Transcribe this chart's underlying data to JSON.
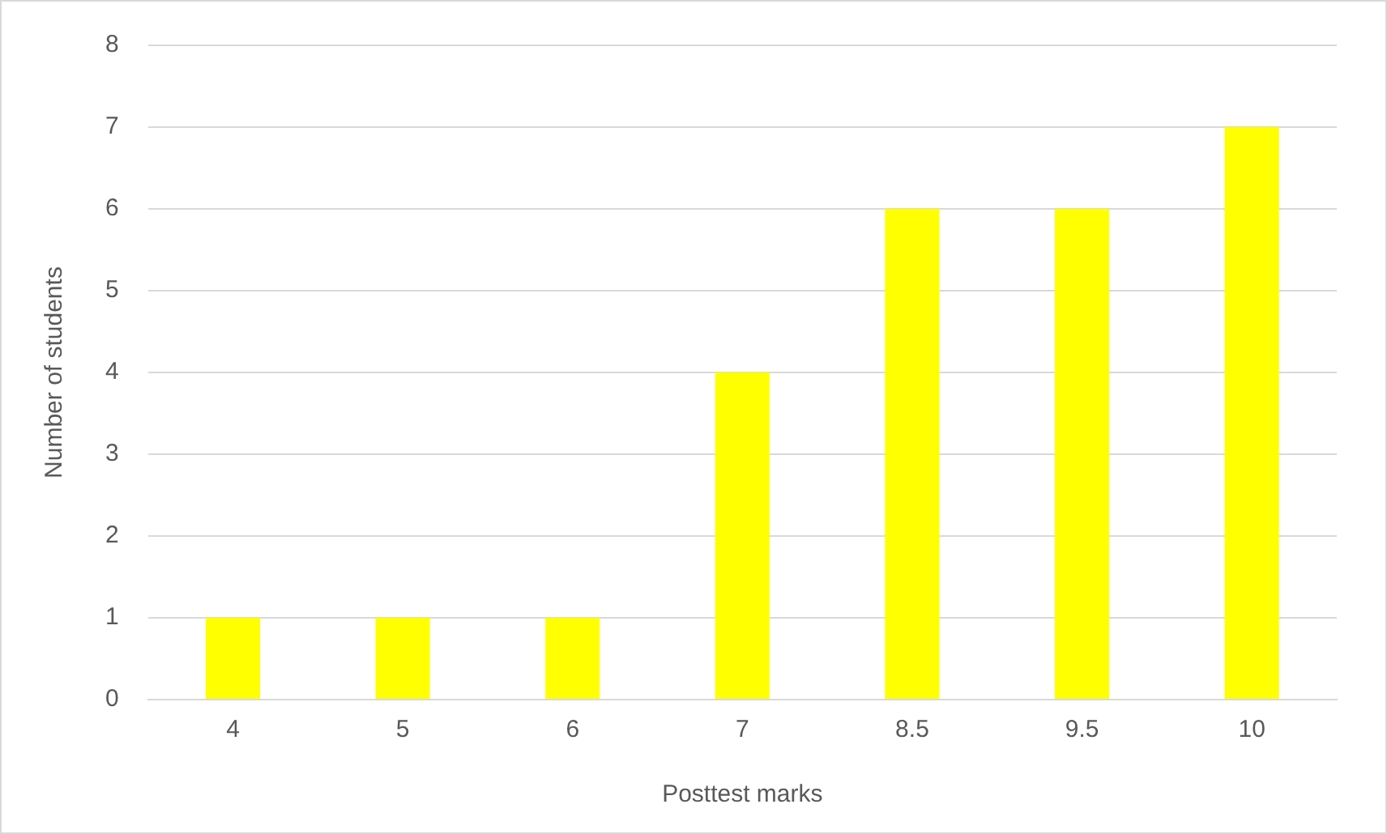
{
  "chart_data": {
    "type": "bar",
    "xlabel": "Posttest marks",
    "ylabel": "Number of students",
    "categories": [
      "4",
      "5",
      "6",
      "7",
      "8.5",
      "9.5",
      "10"
    ],
    "values": [
      1,
      1,
      1,
      4,
      6,
      6,
      7
    ],
    "color": "#ffff00",
    "ylim": [
      0,
      8
    ],
    "yticks": [
      0,
      1,
      2,
      3,
      4,
      5,
      6,
      7,
      8
    ],
    "grid": "y",
    "legend": false
  }
}
